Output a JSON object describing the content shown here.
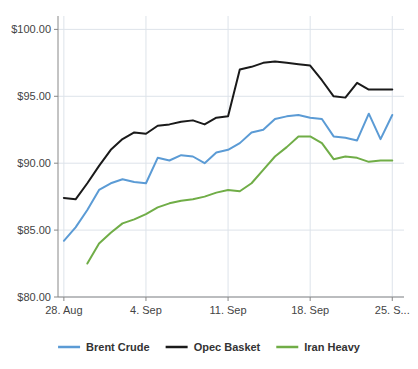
{
  "chart_data": {
    "type": "line",
    "title": "",
    "x": [
      0,
      1,
      2,
      3,
      4,
      5,
      6,
      7,
      8,
      9,
      10,
      11,
      12,
      13,
      14,
      15,
      16,
      17,
      18,
      19,
      20,
      21,
      22,
      23,
      24,
      25,
      26,
      27,
      28
    ],
    "series": [
      {
        "name": "Brent Crude",
        "color": "#5b9bd5",
        "values": [
          84.2,
          85.2,
          86.5,
          88.0,
          88.5,
          88.8,
          88.6,
          88.5,
          90.4,
          90.2,
          90.6,
          90.5,
          90.0,
          90.8,
          91.0,
          91.5,
          92.3,
          92.5,
          93.3,
          93.5,
          93.6,
          93.4,
          93.3,
          92.0,
          91.9,
          91.7,
          93.7,
          91.8,
          93.6
        ]
      },
      {
        "name": "Opec Basket",
        "color": "#1a1a1a",
        "values": [
          87.4,
          87.3,
          88.5,
          89.8,
          91.0,
          91.8,
          92.3,
          92.2,
          92.8,
          92.9,
          93.1,
          93.2,
          92.9,
          93.4,
          93.5,
          97.0,
          97.2,
          97.5,
          97.6,
          97.5,
          97.4,
          97.3,
          96.2,
          95.0,
          94.9,
          96.0,
          95.5,
          95.5,
          95.5
        ]
      },
      {
        "name": "Iran Heavy",
        "color": "#70ad47",
        "values": [
          null,
          null,
          82.5,
          84.0,
          84.8,
          85.5,
          85.8,
          86.2,
          86.7,
          87.0,
          87.2,
          87.3,
          87.5,
          87.8,
          88.0,
          87.9,
          88.5,
          89.5,
          90.5,
          91.2,
          92.0,
          92.0,
          91.5,
          90.3,
          90.5,
          90.4,
          90.1,
          90.2,
          90.2
        ]
      }
    ],
    "xlim": [
      -0.5,
      29
    ],
    "xticks": [
      {
        "value": 0,
        "label": "28. Aug"
      },
      {
        "value": 7,
        "label": "4. Sep"
      },
      {
        "value": 14,
        "label": "11. Sep"
      },
      {
        "value": 21,
        "label": "18. Sep"
      },
      {
        "value": 28,
        "label": "25. S..."
      }
    ],
    "ylim": [
      80.0,
      101.0
    ],
    "yticks": [
      {
        "value": 80.0,
        "label": "$80.00"
      },
      {
        "value": 85.0,
        "label": "$85.00"
      },
      {
        "value": 90.0,
        "label": "$90.00"
      },
      {
        "value": 95.0,
        "label": "$95.00"
      },
      {
        "value": 100.0,
        "label": "$100.00"
      }
    ],
    "grid": true,
    "legend": "bottom"
  }
}
